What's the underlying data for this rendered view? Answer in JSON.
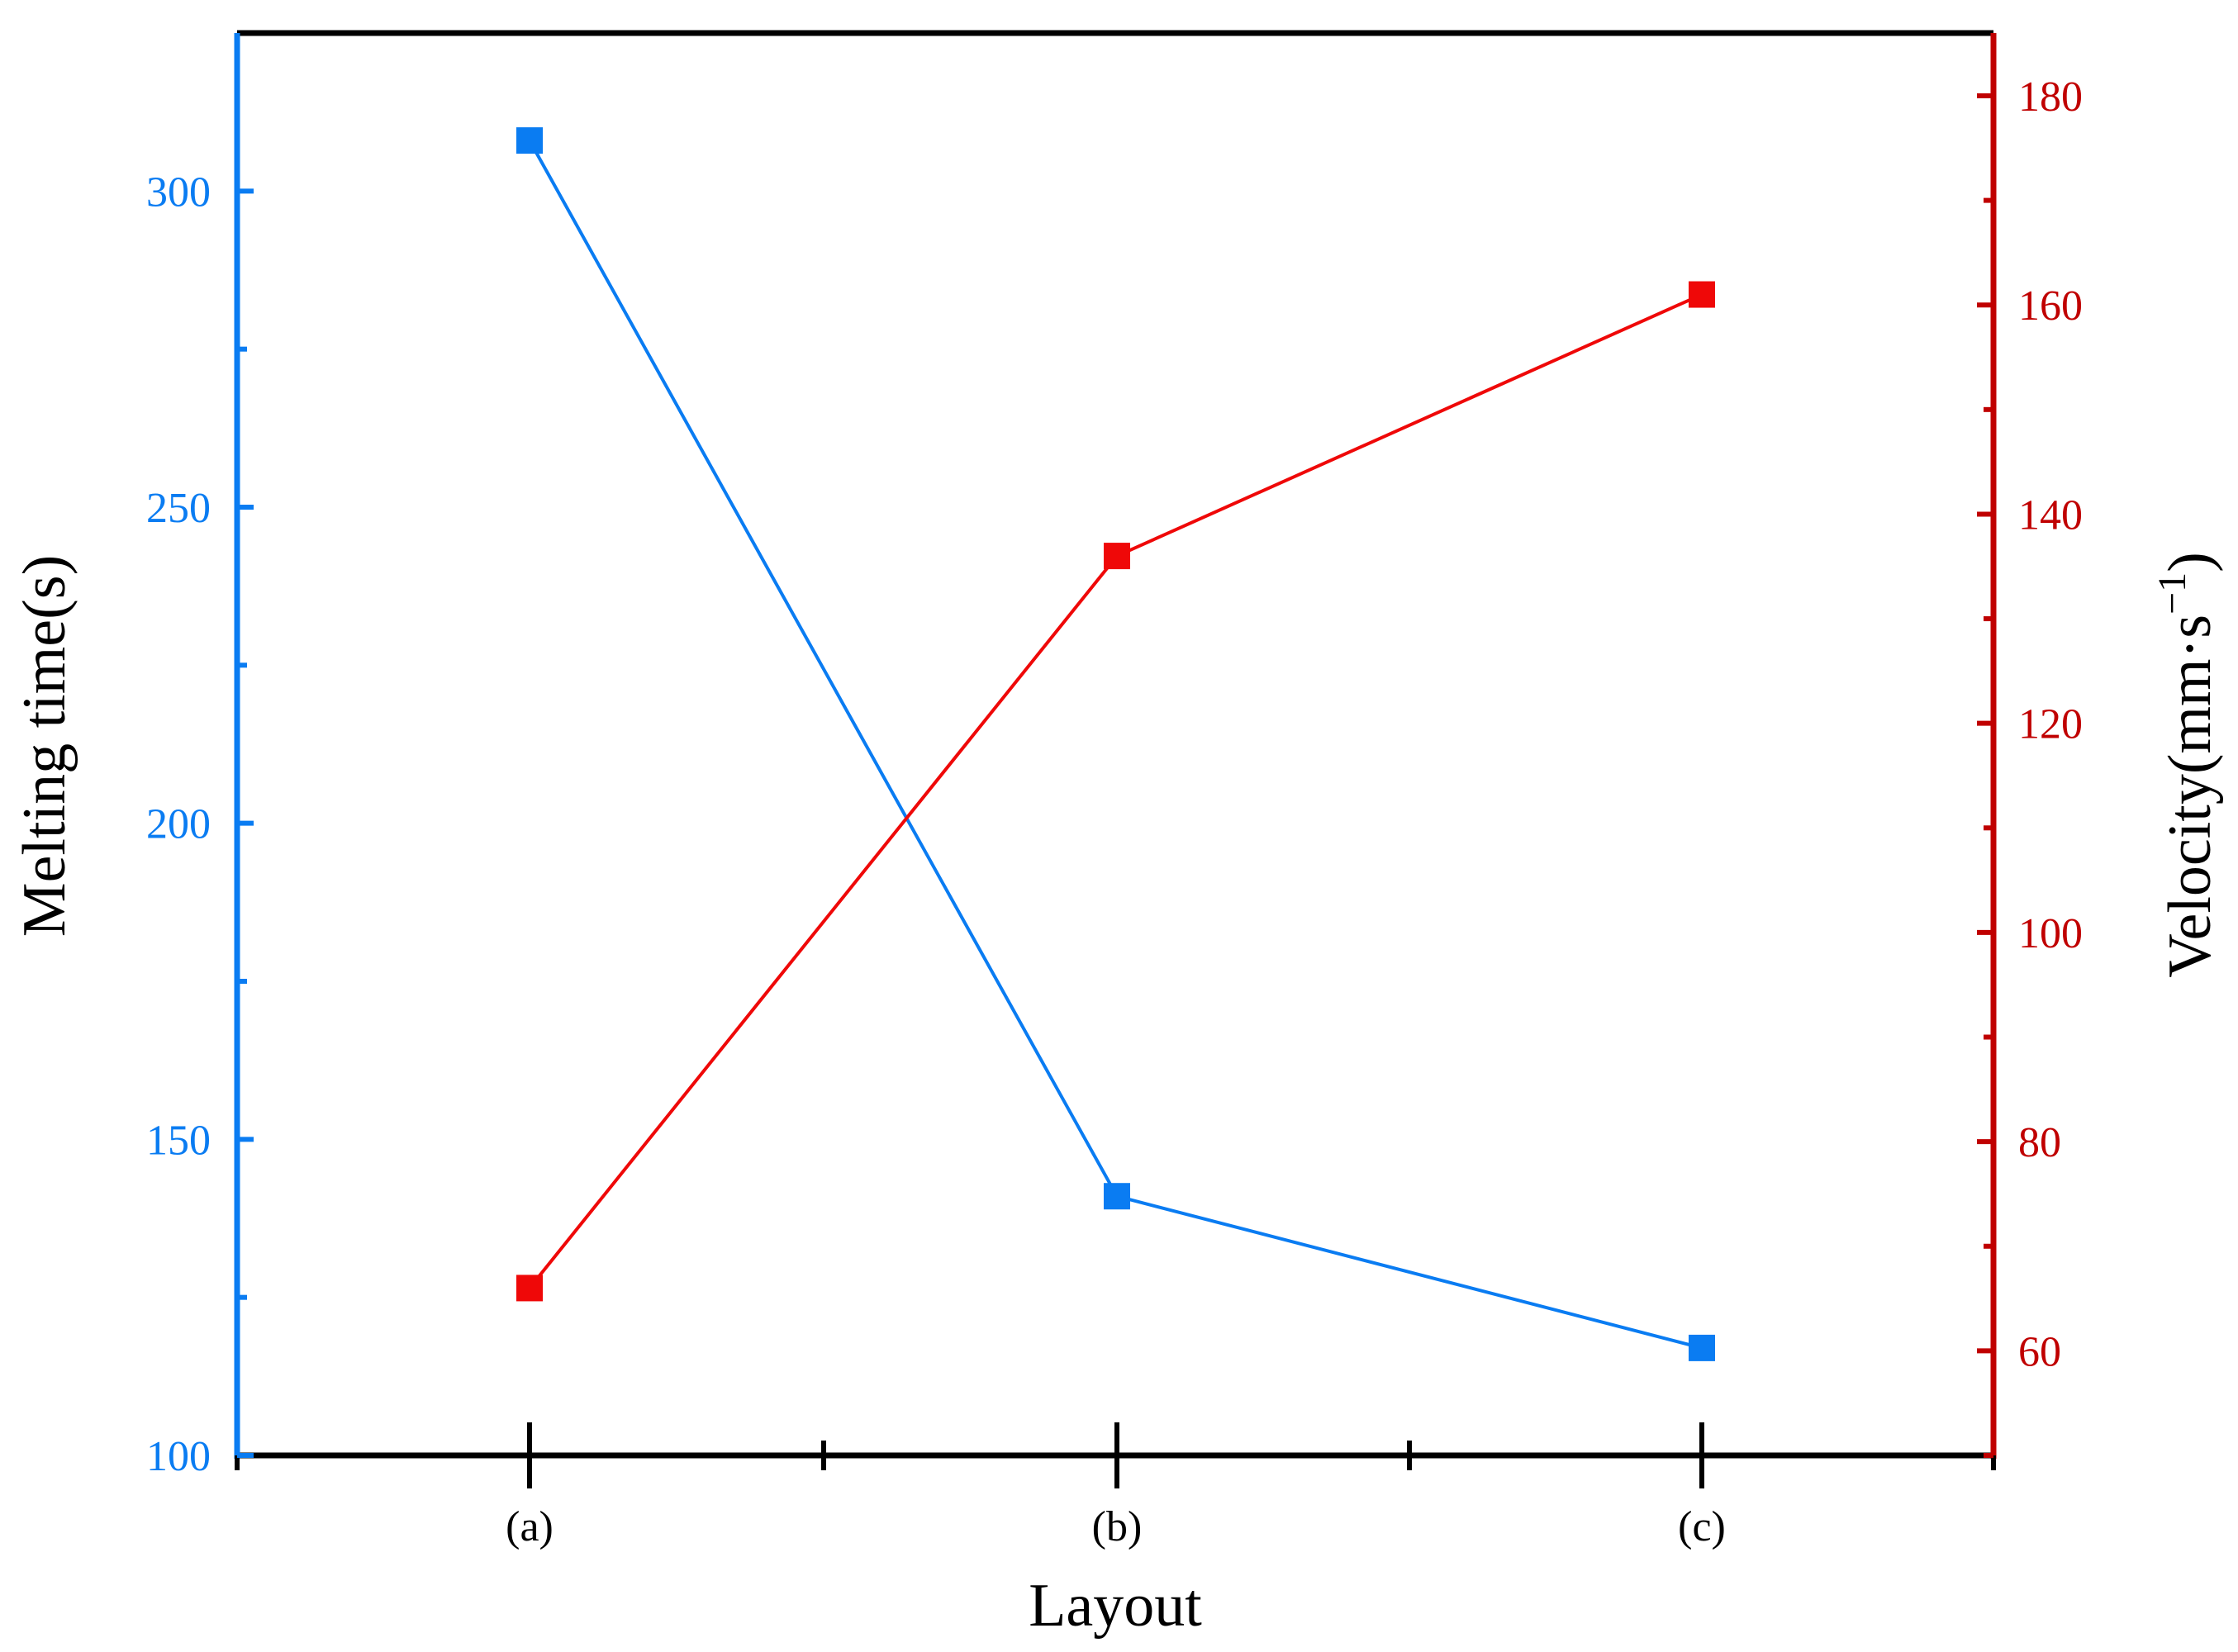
{
  "chart_data": {
    "type": "line",
    "categories": [
      "(a)",
      "(b)",
      "(c)"
    ],
    "xlabel": "Layout",
    "series": [
      {
        "axis": "left",
        "color": "#0a7cf2",
        "marker": "square",
        "values": [
          308,
          141,
          117
        ]
      },
      {
        "axis": "right",
        "color": "#ef0808",
        "marker": "square",
        "values": [
          66,
          136,
          161
        ]
      }
    ],
    "y_left": {
      "label": "Melting time(s)",
      "ylim": [
        100,
        325
      ],
      "ticks": [
        100,
        150,
        200,
        250,
        300
      ],
      "color": "#0a7cf2"
    },
    "y_right": {
      "label_main": "Velocity(mm·s",
      "label_sup": "−1",
      "label_close": ")",
      "ylim": [
        50,
        186
      ],
      "ticks": [
        60,
        80,
        100,
        120,
        140,
        160,
        180
      ],
      "color": "#c00000"
    },
    "grid": false,
    "legend": "none"
  }
}
